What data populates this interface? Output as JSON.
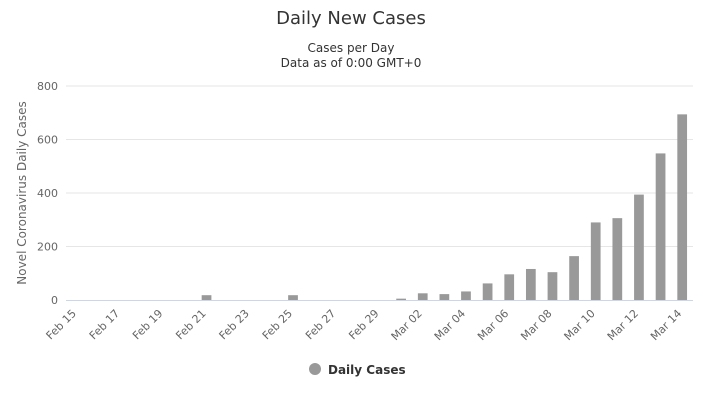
{
  "chart_data": {
    "type": "bar",
    "title": "Daily New Cases",
    "subtitle": [
      "Cases per Day",
      "Data as of 0:00 GMT+0"
    ],
    "ylabel": "Novel Coronavirus Daily Cases",
    "xlabel": "",
    "ylim": [
      0,
      800
    ],
    "yticks": [
      "0",
      "200",
      "400",
      "600",
      "800"
    ],
    "grid": true,
    "legend_position": "bottom",
    "colors": {
      "bar": "#999999",
      "grid": "#e6e6e6",
      "axis": "#ccd6eb"
    },
    "categories": [
      "Feb 15",
      "Feb 16",
      "Feb 17",
      "Feb 18",
      "Feb 19",
      "Feb 20",
      "Feb 21",
      "Feb 22",
      "Feb 23",
      "Feb 24",
      "Feb 25",
      "Feb 26",
      "Feb 27",
      "Feb 28",
      "Feb 29",
      "Mar 01",
      "Mar 02",
      "Mar 03",
      "Mar 04",
      "Mar 05",
      "Mar 06",
      "Mar 07",
      "Mar 08",
      "Mar 09",
      "Mar 10",
      "Mar 11",
      "Mar 12",
      "Mar 13",
      "Mar 14"
    ],
    "xtick_labels": [
      "Feb 15",
      "Feb 17",
      "Feb 19",
      "Feb 21",
      "Feb 23",
      "Feb 25",
      "Feb 27",
      "Feb 29",
      "Mar 02",
      "Mar 04",
      "Mar 06",
      "Mar 08",
      "Mar 10",
      "Mar 12",
      "Mar 14"
    ],
    "series": [
      {
        "name": "Daily Cases",
        "values": [
          0,
          0,
          0,
          0,
          0,
          0,
          18,
          0,
          0,
          0,
          18,
          0,
          0,
          0,
          0,
          5,
          25,
          22,
          32,
          62,
          96,
          116,
          104,
          164,
          290,
          306,
          394,
          548,
          694
        ]
      }
    ]
  }
}
